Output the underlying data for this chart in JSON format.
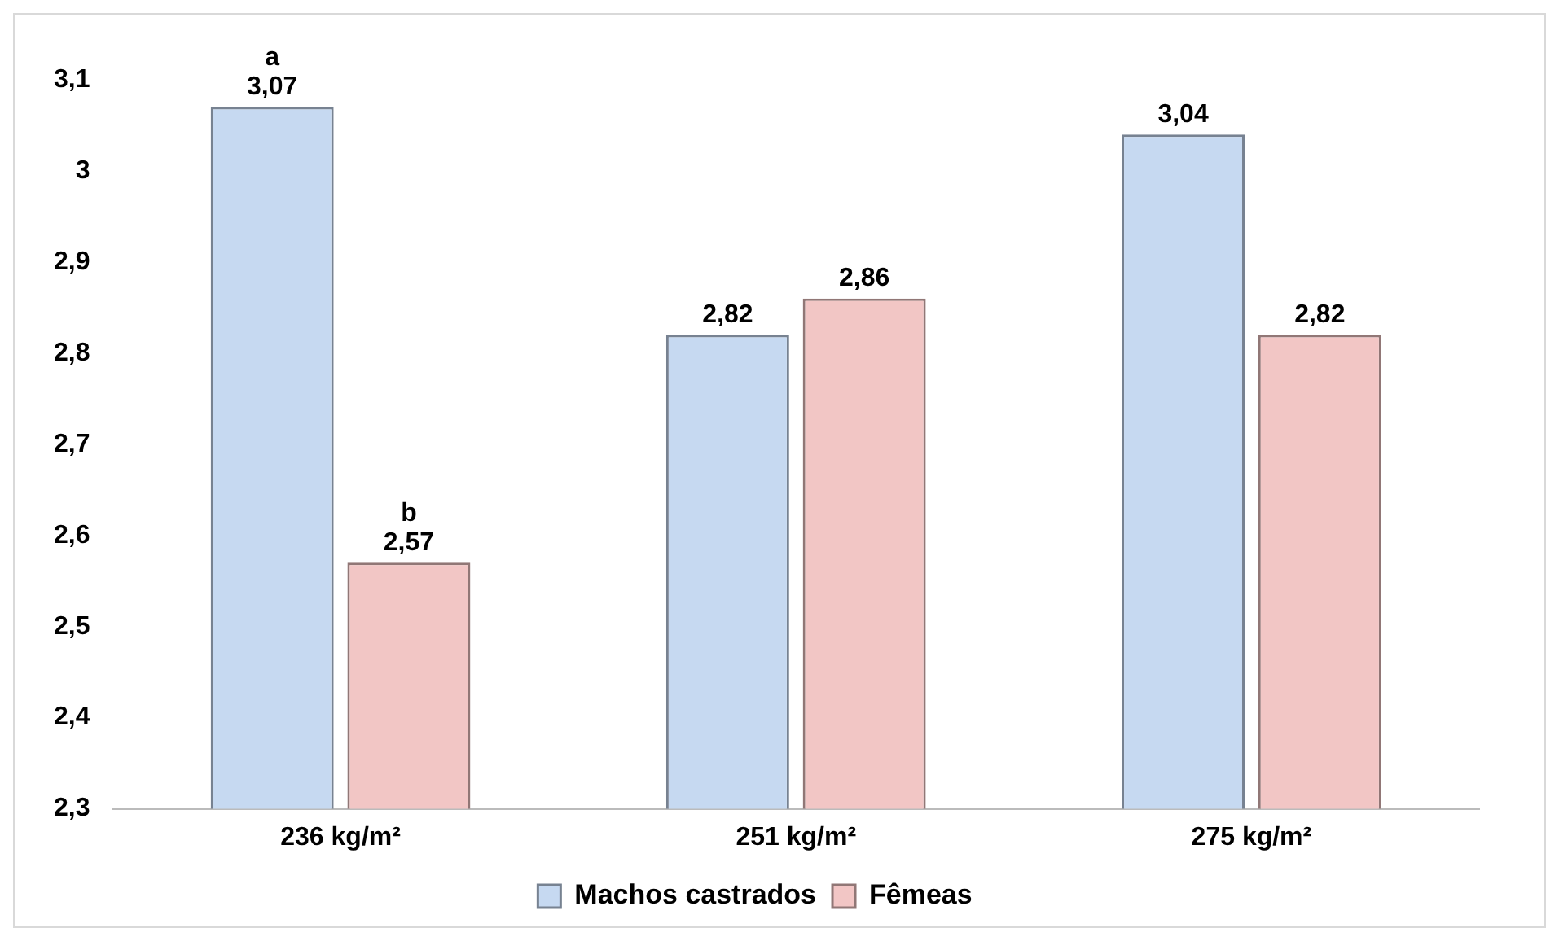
{
  "chart_data": {
    "type": "bar",
    "categories": [
      "236 kg/m²",
      "251 kg/m²",
      "275 kg/m²"
    ],
    "series": [
      {
        "name": "Machos castrados",
        "color": "#c6d9f1",
        "values": [
          3.07,
          2.82,
          3.04
        ],
        "value_labels": [
          "3,07",
          "2,82",
          "3,04"
        ]
      },
      {
        "name": "Fêmeas",
        "color": "#f2c6c5",
        "values": [
          2.57,
          2.86,
          2.82
        ],
        "value_labels": [
          "2,57",
          "2,86",
          "2,82"
        ]
      }
    ],
    "ylim": [
      2.3,
      3.1
    ],
    "yticks": [
      {
        "value": 2.3,
        "label": "2,3"
      },
      {
        "value": 2.4,
        "label": "2,4"
      },
      {
        "value": 2.5,
        "label": "2,5"
      },
      {
        "value": 2.6,
        "label": "2,6"
      },
      {
        "value": 2.7,
        "label": "2,7"
      },
      {
        "value": 2.8,
        "label": "2,8"
      },
      {
        "value": 2.9,
        "label": "2,9"
      },
      {
        "value": 3.0,
        "label": "3"
      },
      {
        "value": 3.1,
        "label": "3,1"
      }
    ],
    "annotations": [
      "a",
      "b"
    ],
    "grid": false,
    "legend": "bottom"
  }
}
